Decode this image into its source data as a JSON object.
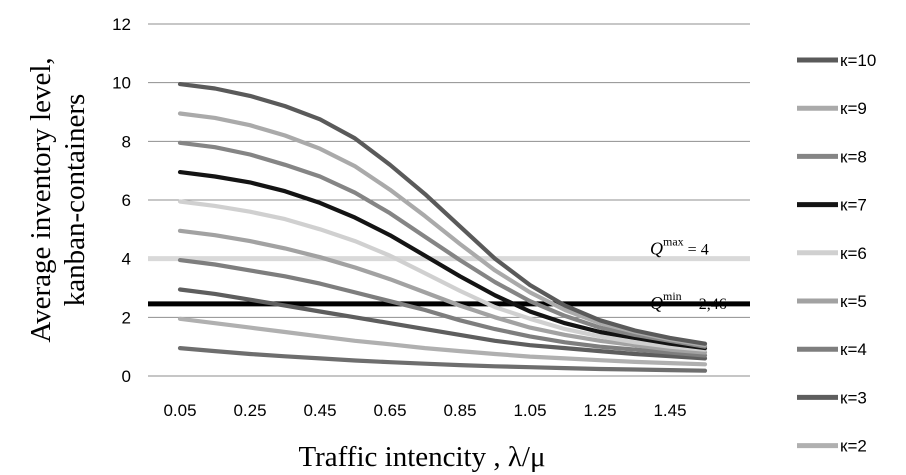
{
  "chart_data": {
    "type": "line",
    "xlabel": "Traffic intencity , λ/μ",
    "ylabel_lines": [
      "Average inventory level,",
      "kanban-containers"
    ],
    "x_tick_labels": [
      "0.05",
      "0.25",
      "0.45",
      "0.65",
      "0.85",
      "1.05",
      "1.25",
      "1.45"
    ],
    "y_tick_labels": [
      "0",
      "2",
      "4",
      "6",
      "8",
      "10",
      "12"
    ],
    "x": [
      0.05,
      0.15,
      0.25,
      0.35,
      0.45,
      0.55,
      0.65,
      0.75,
      0.85,
      0.95,
      1.05,
      1.15,
      1.25,
      1.35,
      1.45,
      1.55
    ],
    "xlim": [
      0.05,
      1.55
    ],
    "ylim": [
      0,
      12
    ],
    "grid": "horizontal",
    "legend_position": "right",
    "series": [
      {
        "name": "к=10",
        "color": "#5a5a5a",
        "values": [
          9.95,
          9.8,
          9.55,
          9.2,
          8.75,
          8.1,
          7.2,
          6.2,
          5.1,
          4.0,
          3.1,
          2.4,
          1.9,
          1.55,
          1.3,
          1.1
        ]
      },
      {
        "name": "к=9",
        "color": "#aaaaaa",
        "values": [
          8.95,
          8.8,
          8.55,
          8.2,
          7.75,
          7.15,
          6.35,
          5.45,
          4.5,
          3.6,
          2.85,
          2.25,
          1.8,
          1.5,
          1.25,
          1.05
        ]
      },
      {
        "name": "к=8",
        "color": "#858585",
        "values": [
          7.95,
          7.8,
          7.55,
          7.2,
          6.8,
          6.25,
          5.55,
          4.75,
          3.95,
          3.2,
          2.55,
          2.05,
          1.65,
          1.4,
          1.2,
          1.0
        ]
      },
      {
        "name": "к=7",
        "color": "#141414",
        "values": [
          6.95,
          6.8,
          6.6,
          6.3,
          5.9,
          5.4,
          4.8,
          4.1,
          3.4,
          2.75,
          2.2,
          1.8,
          1.5,
          1.3,
          1.1,
          0.95
        ]
      },
      {
        "name": "к=6",
        "color": "#d0d0d0",
        "values": [
          5.95,
          5.8,
          5.6,
          5.35,
          5.0,
          4.6,
          4.1,
          3.5,
          2.9,
          2.35,
          1.95,
          1.6,
          1.35,
          1.15,
          1.0,
          0.9
        ]
      },
      {
        "name": "к=5",
        "color": "#a2a2a2",
        "values": [
          4.95,
          4.8,
          4.6,
          4.35,
          4.05,
          3.7,
          3.3,
          2.85,
          2.4,
          2.0,
          1.65,
          1.4,
          1.2,
          1.05,
          0.9,
          0.8
        ]
      },
      {
        "name": "к=4",
        "color": "#7e7e7e",
        "values": [
          3.95,
          3.8,
          3.6,
          3.4,
          3.15,
          2.85,
          2.55,
          2.25,
          1.9,
          1.6,
          1.35,
          1.15,
          1.0,
          0.9,
          0.8,
          0.7
        ]
      },
      {
        "name": "к=3",
        "color": "#5e5e5e",
        "values": [
          2.95,
          2.8,
          2.6,
          2.4,
          2.2,
          2.0,
          1.8,
          1.6,
          1.4,
          1.2,
          1.05,
          0.95,
          0.85,
          0.75,
          0.68,
          0.6
        ]
      },
      {
        "name": "к=2",
        "color": "#b0b0b0",
        "values": [
          1.95,
          1.8,
          1.65,
          1.5,
          1.35,
          1.2,
          1.08,
          0.95,
          0.85,
          0.75,
          0.66,
          0.6,
          0.54,
          0.48,
          0.44,
          0.4
        ]
      },
      {
        "name": "",
        "color": "#6e6e6e",
        "values": [
          0.95,
          0.85,
          0.75,
          0.67,
          0.6,
          0.53,
          0.47,
          0.42,
          0.37,
          0.33,
          0.3,
          0.27,
          0.24,
          0.22,
          0.2,
          0.18
        ]
      }
    ],
    "reference_lines": [
      {
        "label_base": "Q",
        "label_sup": "max",
        "label_tail": " = 4",
        "y": 4,
        "color": "#d9d9d9"
      },
      {
        "label_base": "Q",
        "label_sup": "min",
        "label_tail": " = 2,46",
        "y": 2.46,
        "color": "#000000"
      }
    ]
  }
}
